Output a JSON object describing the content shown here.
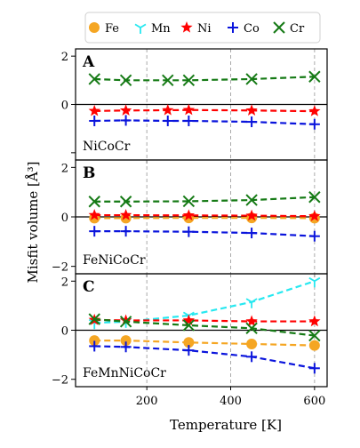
{
  "chart_data": {
    "type": "line",
    "xlabel": "Temperature [K]",
    "ylabel": "Misfit volume [Å³]",
    "x_ticks": [
      200,
      400,
      600
    ],
    "x_range": [
      30,
      630
    ],
    "grid": "dashed vertical lines at x = 200, 400, 600",
    "legend": {
      "placement": "top",
      "entries": [
        {
          "name": "Fe",
          "color": "#f5a623",
          "marker": "circle"
        },
        {
          "name": "Mn",
          "color": "#27e8f0",
          "marker": "tri_down"
        },
        {
          "name": "Ni",
          "color": "#ff0000",
          "marker": "star"
        },
        {
          "name": "Co",
          "color": "#0a14dc",
          "marker": "plus"
        },
        {
          "name": "Cr",
          "color": "#157a15",
          "marker": "x"
        }
      ]
    },
    "panels": [
      {
        "letter": "A",
        "alloy": "NiCoCr",
        "ylim": [
          -2.3,
          2.3
        ],
        "y_ticks": [
          -2,
          0,
          2
        ],
        "y_tick_labels": [
          "",
          "0",
          "2"
        ],
        "series": [
          {
            "name": "Ni",
            "x": [
              75,
              150,
              250,
              300,
              450,
              600
            ],
            "y": [
              -0.27,
              -0.25,
              -0.24,
              -0.23,
              -0.25,
              -0.28
            ]
          },
          {
            "name": "Co",
            "x": [
              75,
              150,
              250,
              300,
              450,
              600
            ],
            "y": [
              -0.68,
              -0.66,
              -0.68,
              -0.68,
              -0.72,
              -0.82
            ]
          },
          {
            "name": "Cr",
            "x": [
              75,
              150,
              250,
              300,
              450,
              600
            ],
            "y": [
              1.05,
              1.0,
              1.0,
              1.0,
              1.05,
              1.15
            ]
          }
        ]
      },
      {
        "letter": "B",
        "alloy": "FeNiCoCr",
        "ylim": [
          -2.3,
          2.3
        ],
        "y_ticks": [
          -2,
          0,
          2
        ],
        "y_tick_labels": [
          "−2",
          "0",
          "2"
        ],
        "series": [
          {
            "name": "Fe",
            "x": [
              75,
              150,
              300,
              450,
              600
            ],
            "y": [
              -0.05,
              -0.05,
              -0.04,
              -0.04,
              -0.05
            ]
          },
          {
            "name": "Ni",
            "x": [
              75,
              150,
              300,
              450,
              600
            ],
            "y": [
              0.07,
              0.07,
              0.06,
              0.05,
              0.03
            ]
          },
          {
            "name": "Co",
            "x": [
              75,
              150,
              300,
              450,
              600
            ],
            "y": [
              -0.58,
              -0.58,
              -0.6,
              -0.65,
              -0.78
            ]
          },
          {
            "name": "Cr",
            "x": [
              75,
              150,
              300,
              450,
              600
            ],
            "y": [
              0.62,
              0.62,
              0.63,
              0.68,
              0.8
            ]
          }
        ]
      },
      {
        "letter": "C",
        "alloy": "FeMnNiCoCr",
        "ylim": [
          -2.3,
          2.3
        ],
        "y_ticks": [
          -2,
          0,
          2
        ],
        "y_tick_labels": [
          "−2",
          "0",
          "2"
        ],
        "series": [
          {
            "name": "Fe",
            "x": [
              75,
              150,
              300,
              450,
              600
            ],
            "y": [
              -0.42,
              -0.42,
              -0.5,
              -0.56,
              -0.62
            ]
          },
          {
            "name": "Mn",
            "x": [
              75,
              150,
              300,
              450,
              600
            ],
            "y": [
              0.3,
              0.35,
              0.6,
              1.15,
              2.0
            ]
          },
          {
            "name": "Ni",
            "x": [
              75,
              150,
              300,
              450,
              600
            ],
            "y": [
              0.42,
              0.4,
              0.4,
              0.36,
              0.36
            ]
          },
          {
            "name": "Co",
            "x": [
              75,
              150,
              300,
              450,
              600
            ],
            "y": [
              -0.65,
              -0.68,
              -0.82,
              -1.08,
              -1.55
            ]
          },
          {
            "name": "Cr",
            "x": [
              75,
              150,
              300,
              450,
              600
            ],
            "y": [
              0.45,
              0.35,
              0.2,
              0.08,
              -0.22
            ]
          }
        ]
      }
    ]
  }
}
